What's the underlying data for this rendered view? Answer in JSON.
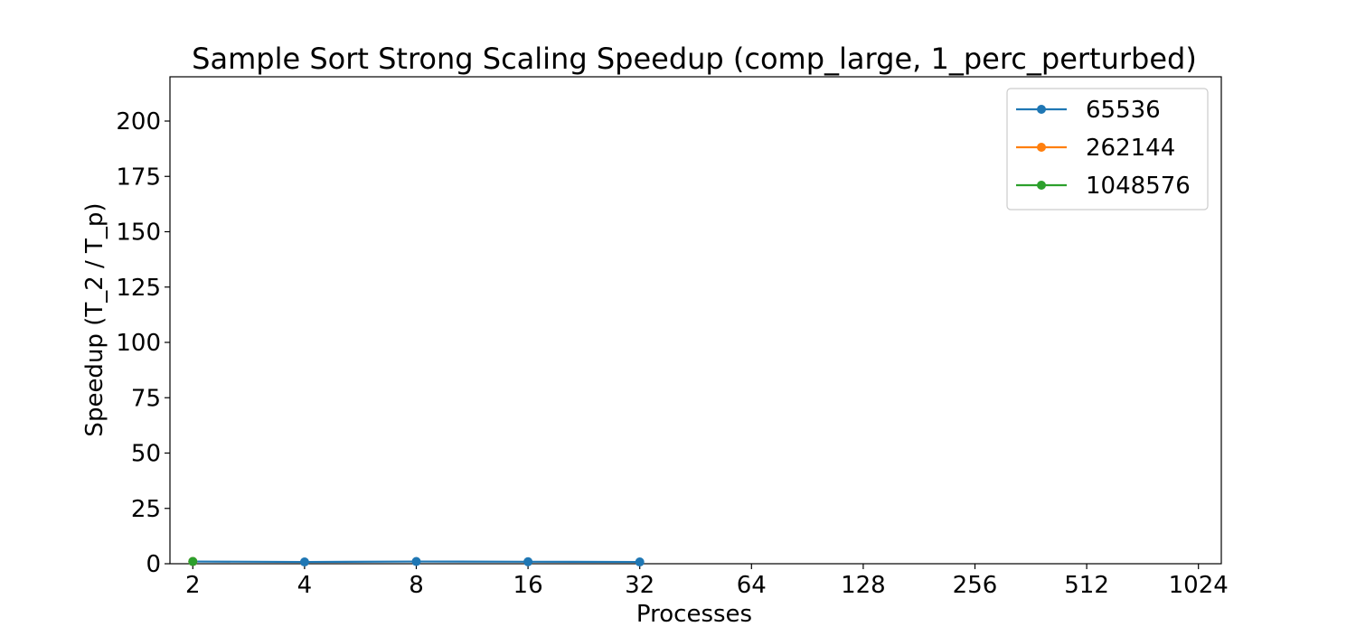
{
  "chart_data": {
    "type": "line",
    "title": "Sample Sort Strong Scaling Speedup (comp_large, 1_perc_perturbed)",
    "xlabel": "Processes",
    "ylabel": "Speedup (T_2 / T_p)",
    "x_scale": "log2",
    "x_ticks": [
      "2",
      "4",
      "8",
      "16",
      "32",
      "64",
      "128",
      "256",
      "512",
      "1024"
    ],
    "x_tick_values": [
      2,
      4,
      8,
      16,
      32,
      64,
      128,
      256,
      512,
      1024
    ],
    "y_ticks": [
      0,
      25,
      50,
      75,
      100,
      125,
      150,
      175,
      200
    ],
    "ylim": [
      0,
      220
    ],
    "grid": false,
    "legend_position": "top-right",
    "series": [
      {
        "name": "65536",
        "color": "#1f77b4",
        "x": [
          2,
          4,
          8,
          16,
          32
        ],
        "y": [
          1.0,
          0.8,
          1.0,
          0.9,
          0.8
        ]
      },
      {
        "name": "262144",
        "color": "#ff7f0e",
        "x": [
          2
        ],
        "y": [
          1.0
        ]
      },
      {
        "name": "1048576",
        "color": "#2ca02c",
        "x": [
          2
        ],
        "y": [
          1.0
        ]
      }
    ]
  }
}
